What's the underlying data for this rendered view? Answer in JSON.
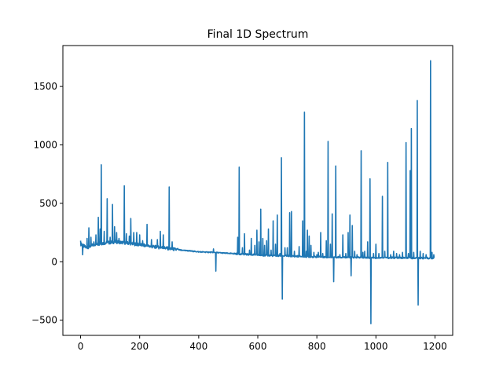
{
  "chart_data": {
    "type": "line",
    "title": "Final 1D Spectrum",
    "xlabel": "",
    "ylabel": "",
    "xlim": [
      -60,
      1260
    ],
    "ylim": [
      -630,
      1850
    ],
    "xticks": [
      0,
      200,
      400,
      600,
      800,
      1000,
      1200
    ],
    "yticks": [
      -500,
      0,
      500,
      1000,
      1500
    ],
    "grid": false,
    "legend": "none",
    "series": [
      {
        "color": "#1f77b4",
        "baseline": [
          [
            0,
            150
          ],
          [
            20,
            120
          ],
          [
            50,
            150
          ],
          [
            80,
            160
          ],
          [
            120,
            170
          ],
          [
            160,
            160
          ],
          [
            200,
            145
          ],
          [
            240,
            130
          ],
          [
            280,
            120
          ],
          [
            320,
            105
          ],
          [
            360,
            95
          ],
          [
            400,
            85
          ],
          [
            450,
            80
          ],
          [
            500,
            72
          ],
          [
            550,
            65
          ],
          [
            600,
            58
          ],
          [
            650,
            52
          ],
          [
            700,
            50
          ],
          [
            750,
            45
          ],
          [
            800,
            42
          ],
          [
            850,
            40
          ],
          [
            900,
            38
          ],
          [
            950,
            36
          ],
          [
            1000,
            35
          ],
          [
            1050,
            34
          ],
          [
            1100,
            33
          ],
          [
            1150,
            32
          ],
          [
            1198,
            30
          ]
        ],
        "peaks": [
          [
            0,
            180
          ],
          [
            3,
            160
          ],
          [
            7,
            60
          ],
          [
            22,
            200
          ],
          [
            28,
            290
          ],
          [
            35,
            210
          ],
          [
            45,
            170
          ],
          [
            52,
            230
          ],
          [
            60,
            380
          ],
          [
            66,
            280
          ],
          [
            70,
            830
          ],
          [
            80,
            260
          ],
          [
            90,
            540
          ],
          [
            100,
            210
          ],
          [
            108,
            490
          ],
          [
            115,
            300
          ],
          [
            122,
            250
          ],
          [
            130,
            200
          ],
          [
            140,
            170
          ],
          [
            148,
            650
          ],
          [
            155,
            240
          ],
          [
            165,
            220
          ],
          [
            170,
            370
          ],
          [
            180,
            250
          ],
          [
            190,
            250
          ],
          [
            200,
            230
          ],
          [
            210,
            180
          ],
          [
            225,
            320
          ],
          [
            240,
            190
          ],
          [
            260,
            190
          ],
          [
            270,
            260
          ],
          [
            280,
            230
          ],
          [
            300,
            640
          ],
          [
            310,
            170
          ],
          [
            330,
            110
          ],
          [
            340,
            95
          ],
          [
            450,
            110
          ],
          [
            458,
            -80
          ],
          [
            532,
            210
          ],
          [
            537,
            810
          ],
          [
            548,
            120
          ],
          [
            555,
            240
          ],
          [
            566,
            60
          ],
          [
            572,
            100
          ],
          [
            578,
            200
          ],
          [
            590,
            140
          ],
          [
            597,
            270
          ],
          [
            604,
            170
          ],
          [
            610,
            450
          ],
          [
            617,
            200
          ],
          [
            623,
            140
          ],
          [
            630,
            180
          ],
          [
            636,
            280
          ],
          [
            645,
            100
          ],
          [
            652,
            350
          ],
          [
            660,
            150
          ],
          [
            666,
            400
          ],
          [
            675,
            70
          ],
          [
            680,
            890
          ],
          [
            683,
            -320
          ],
          [
            692,
            120
          ],
          [
            700,
            120
          ],
          [
            708,
            420
          ],
          [
            714,
            430
          ],
          [
            724,
            90
          ],
          [
            740,
            130
          ],
          [
            752,
            350
          ],
          [
            758,
            1280
          ],
          [
            764,
            90
          ],
          [
            768,
            270
          ],
          [
            774,
            220
          ],
          [
            780,
            140
          ],
          [
            790,
            80
          ],
          [
            800,
            60
          ],
          [
            805,
            80
          ],
          [
            813,
            250
          ],
          [
            820,
            70
          ],
          [
            832,
            180
          ],
          [
            838,
            1030
          ],
          [
            846,
            150
          ],
          [
            852,
            410
          ],
          [
            857,
            -170
          ],
          [
            864,
            820
          ],
          [
            878,
            60
          ],
          [
            888,
            230
          ],
          [
            898,
            70
          ],
          [
            906,
            250
          ],
          [
            912,
            400
          ],
          [
            916,
            -120
          ],
          [
            920,
            310
          ],
          [
            928,
            90
          ],
          [
            936,
            60
          ],
          [
            950,
            950
          ],
          [
            956,
            80
          ],
          [
            962,
            90
          ],
          [
            972,
            170
          ],
          [
            980,
            710
          ],
          [
            983,
            -530
          ],
          [
            992,
            70
          ],
          [
            1000,
            150
          ],
          [
            1010,
            70
          ],
          [
            1022,
            560
          ],
          [
            1030,
            90
          ],
          [
            1040,
            850
          ],
          [
            1050,
            60
          ],
          [
            1060,
            90
          ],
          [
            1070,
            70
          ],
          [
            1080,
            60
          ],
          [
            1090,
            80
          ],
          [
            1102,
            1020
          ],
          [
            1110,
            70
          ],
          [
            1116,
            780
          ],
          [
            1120,
            1140
          ],
          [
            1128,
            80
          ],
          [
            1140,
            1380
          ],
          [
            1143,
            -370
          ],
          [
            1150,
            90
          ],
          [
            1160,
            70
          ],
          [
            1170,
            60
          ],
          [
            1185,
            1720
          ],
          [
            1190,
            80
          ],
          [
            1196,
            60
          ]
        ]
      }
    ]
  }
}
